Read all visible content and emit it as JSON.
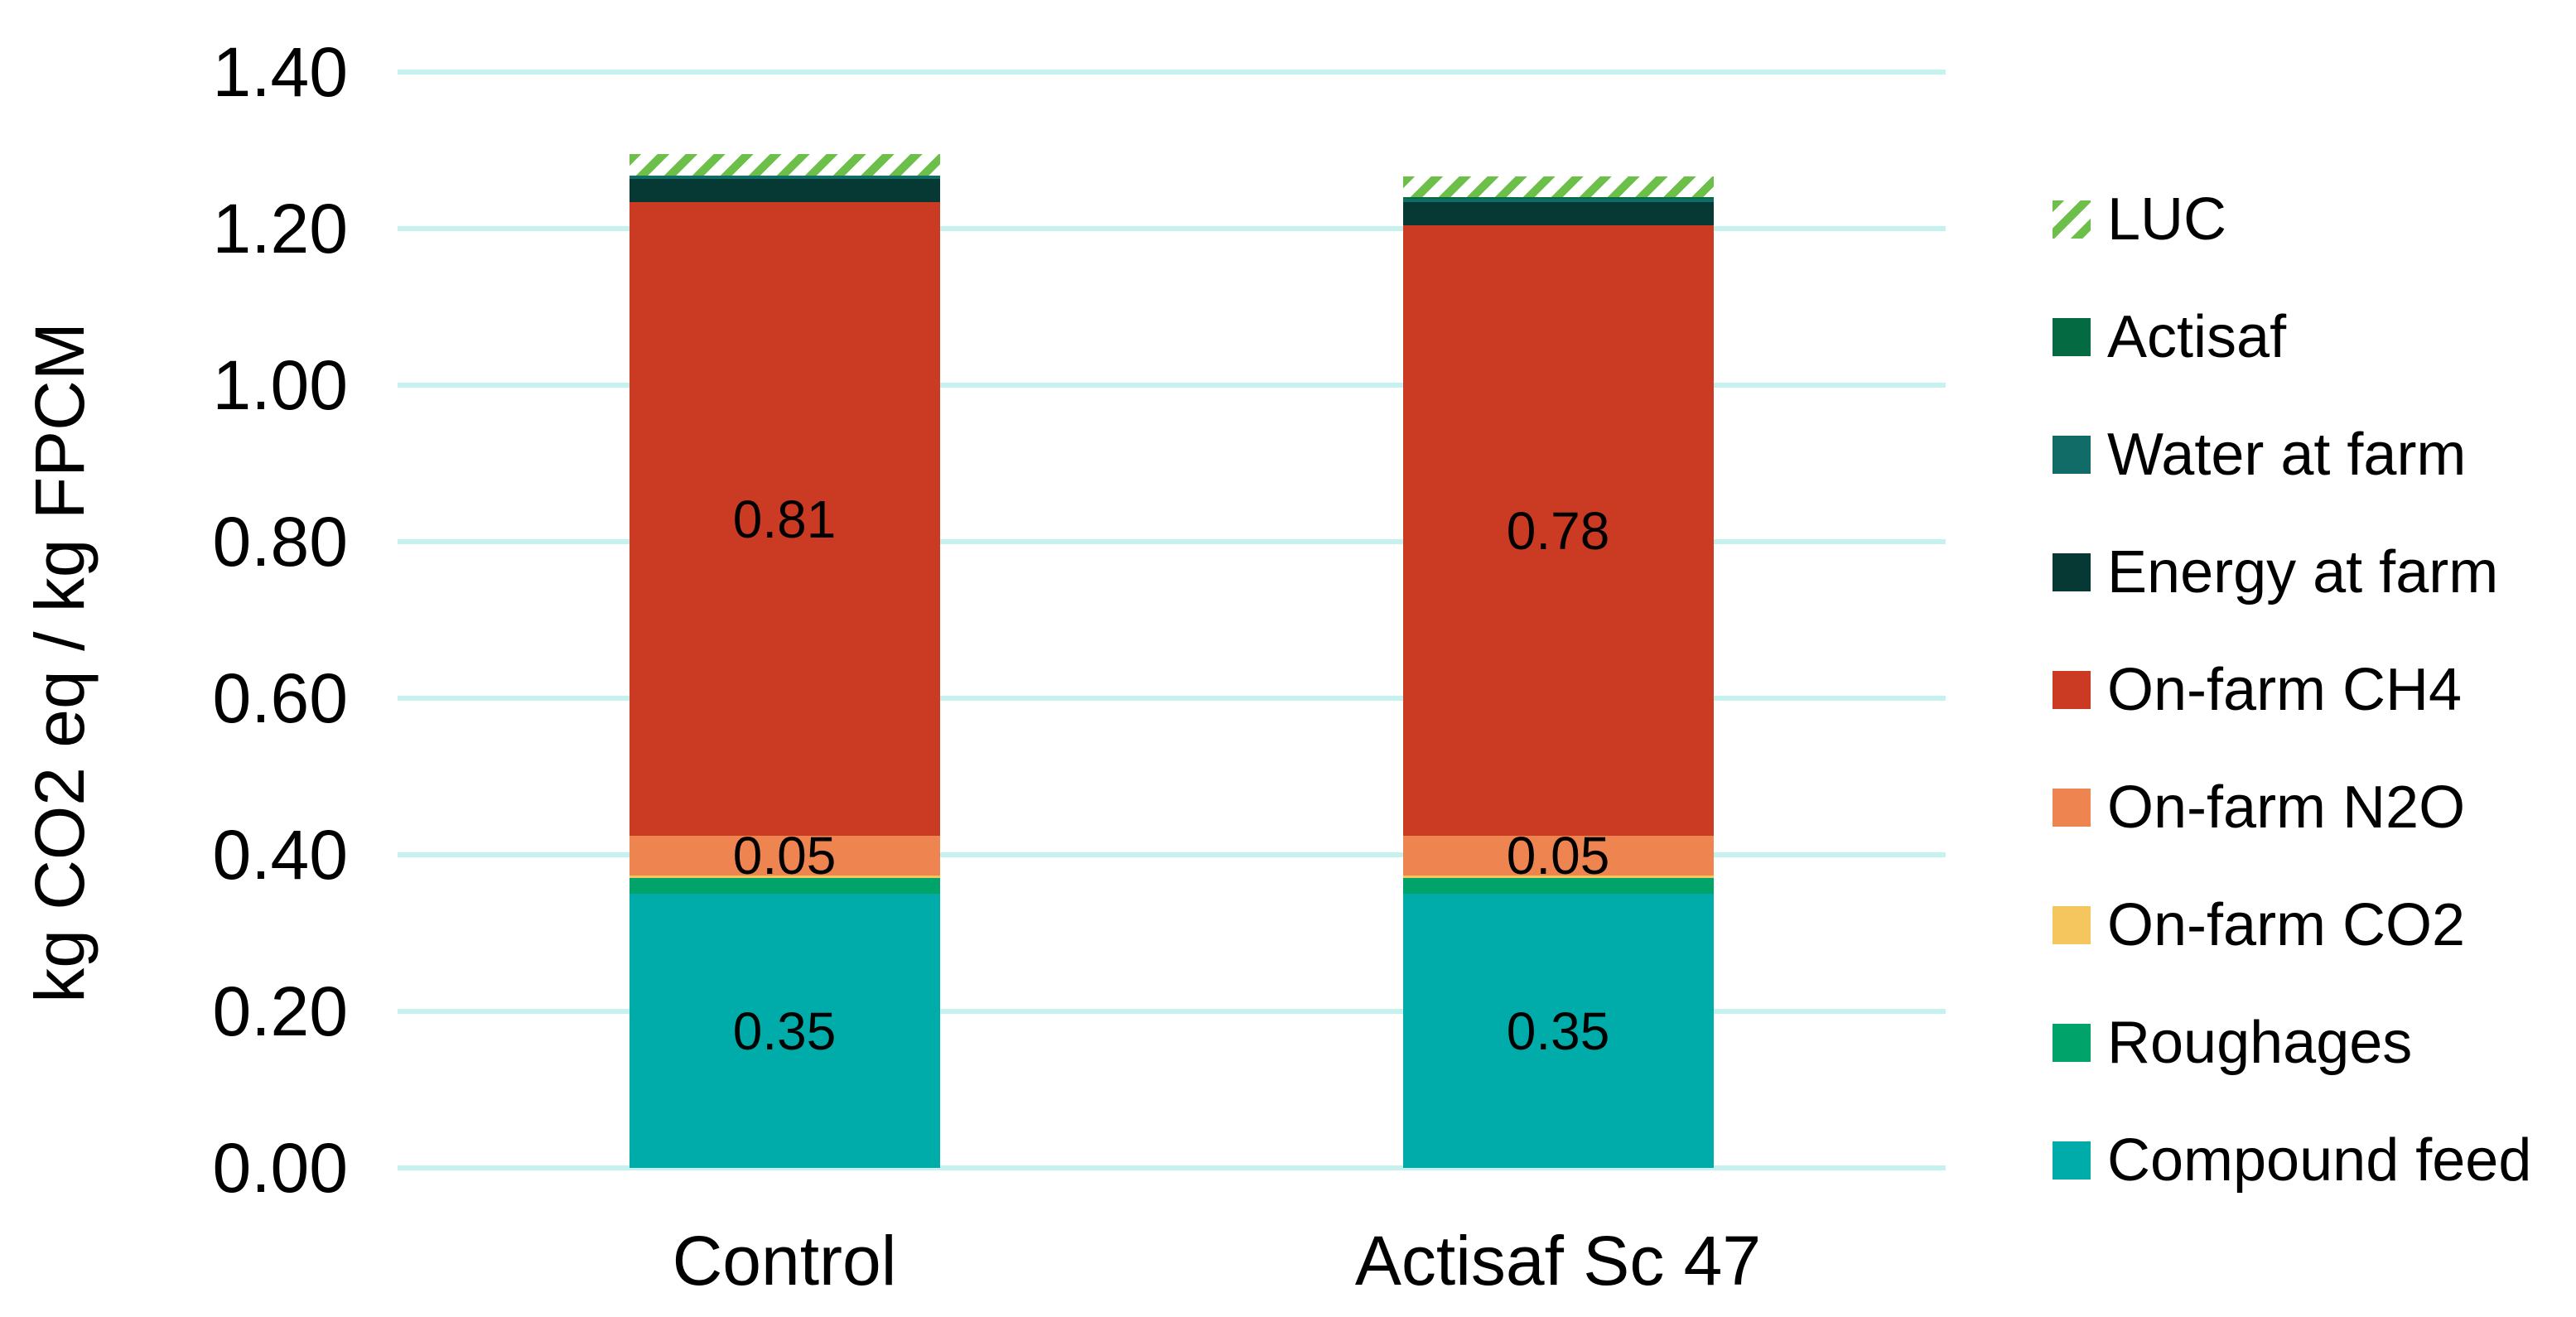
{
  "chart_data": {
    "type": "bar",
    "stacked": true,
    "title": "",
    "xlabel": "",
    "ylabel": "kg CO2 eq / kg FPCM",
    "categories": [
      "Control",
      "Actisaf Sc 47"
    ],
    "ylim": [
      0,
      1.4
    ],
    "ytick_step": 0.2,
    "ytick_labels": [
      "0.00",
      "0.20",
      "0.40",
      "0.60",
      "0.80",
      "1.00",
      "1.20",
      "1.40"
    ],
    "grid": "horizontal",
    "gridline_color": "#C5F2EF",
    "series": [
      {
        "name": "Compound feed",
        "color": "#00ACA9",
        "hatch": false,
        "values": [
          0.35,
          0.35
        ],
        "labels": [
          "0.35",
          "0.35"
        ]
      },
      {
        "name": "Roughages",
        "color": "#00A36A",
        "hatch": false,
        "values": [
          0.02,
          0.02
        ],
        "labels": [
          "",
          ""
        ]
      },
      {
        "name": "On-farm CO2",
        "color": "#F5C55E",
        "hatch": false,
        "values": [
          0.004,
          0.004
        ],
        "labels": [
          "",
          ""
        ]
      },
      {
        "name": "On-farm N2O",
        "color": "#EE8450",
        "hatch": false,
        "values": [
          0.05,
          0.05
        ],
        "labels": [
          "0.05",
          "0.05"
        ]
      },
      {
        "name": "On-farm CH4",
        "color": "#CB3A22",
        "hatch": false,
        "values": [
          0.81,
          0.78
        ],
        "labels": [
          "0.81",
          "0.78"
        ]
      },
      {
        "name": "Energy at farm",
        "color": "#063834",
        "hatch": false,
        "values": [
          0.03,
          0.03
        ],
        "labels": [
          "",
          ""
        ]
      },
      {
        "name": "Water at farm",
        "color": "#116C67",
        "hatch": false,
        "values": [
          0.004,
          0.004
        ],
        "labels": [
          "",
          ""
        ]
      },
      {
        "name": "Actisaf",
        "color": "#046A41",
        "hatch": false,
        "values": [
          0.0,
          0.002
        ],
        "labels": [
          "",
          ""
        ]
      },
      {
        "name": "LUC",
        "color": "#6CC04A",
        "hatch": true,
        "values": [
          0.027,
          0.027
        ],
        "labels": [
          "",
          ""
        ]
      }
    ],
    "legend": {
      "position": "right",
      "items": [
        "LUC",
        "Actisaf",
        "Water at farm",
        "Energy at farm",
        "On-farm CH4",
        "On-farm N2O",
        "On-farm CO2",
        "Roughages",
        "Compound feed"
      ]
    }
  }
}
